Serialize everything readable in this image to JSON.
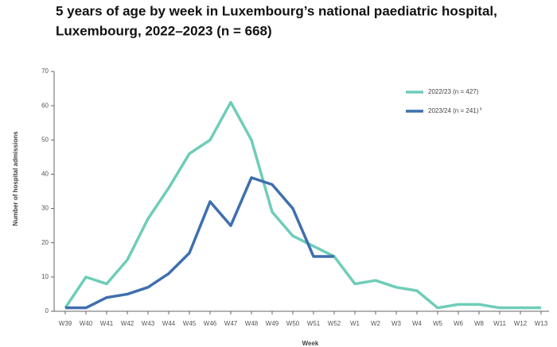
{
  "chart_data": {
    "type": "line",
    "title_lines": [
      "5 years of age by week in Luxembourg’s national paediatric hospital,",
      "Luxembourg, 2022–2023 (n = 668)"
    ],
    "x_label": "Week",
    "y_label": "Number of hospital admissions",
    "categories": [
      "W39",
      "W40",
      "W41",
      "W42",
      "W43",
      "W44",
      "W45",
      "W46",
      "W47",
      "W48",
      "W49",
      "W50",
      "W51",
      "W52",
      "W1",
      "W2",
      "W3",
      "W4",
      "W5",
      "W6",
      "W8",
      "W11",
      "W12",
      "W13"
    ],
    "series": [
      {
        "name": "2022/23 (n = 427)",
        "color": "#6ecdb8",
        "values": [
          1,
          10,
          8,
          15,
          27,
          36,
          46,
          50,
          61,
          50,
          29,
          22,
          19,
          16,
          8,
          9,
          7,
          6,
          1,
          2,
          2,
          1,
          1,
          1
        ]
      },
      {
        "name": "2023/24 (n = 241)",
        "footnote_marker": "a",
        "color": "#3f6fae",
        "values": [
          1,
          1,
          4,
          5,
          7,
          11,
          17,
          32,
          25,
          39,
          37,
          30,
          16,
          16,
          null,
          null,
          null,
          null,
          null,
          null,
          null,
          null,
          null,
          null
        ]
      }
    ],
    "ylim": [
      0,
      70
    ],
    "yticks": [
      0,
      10,
      20,
      30,
      40,
      50,
      60,
      70
    ],
    "legend": "upper right"
  }
}
